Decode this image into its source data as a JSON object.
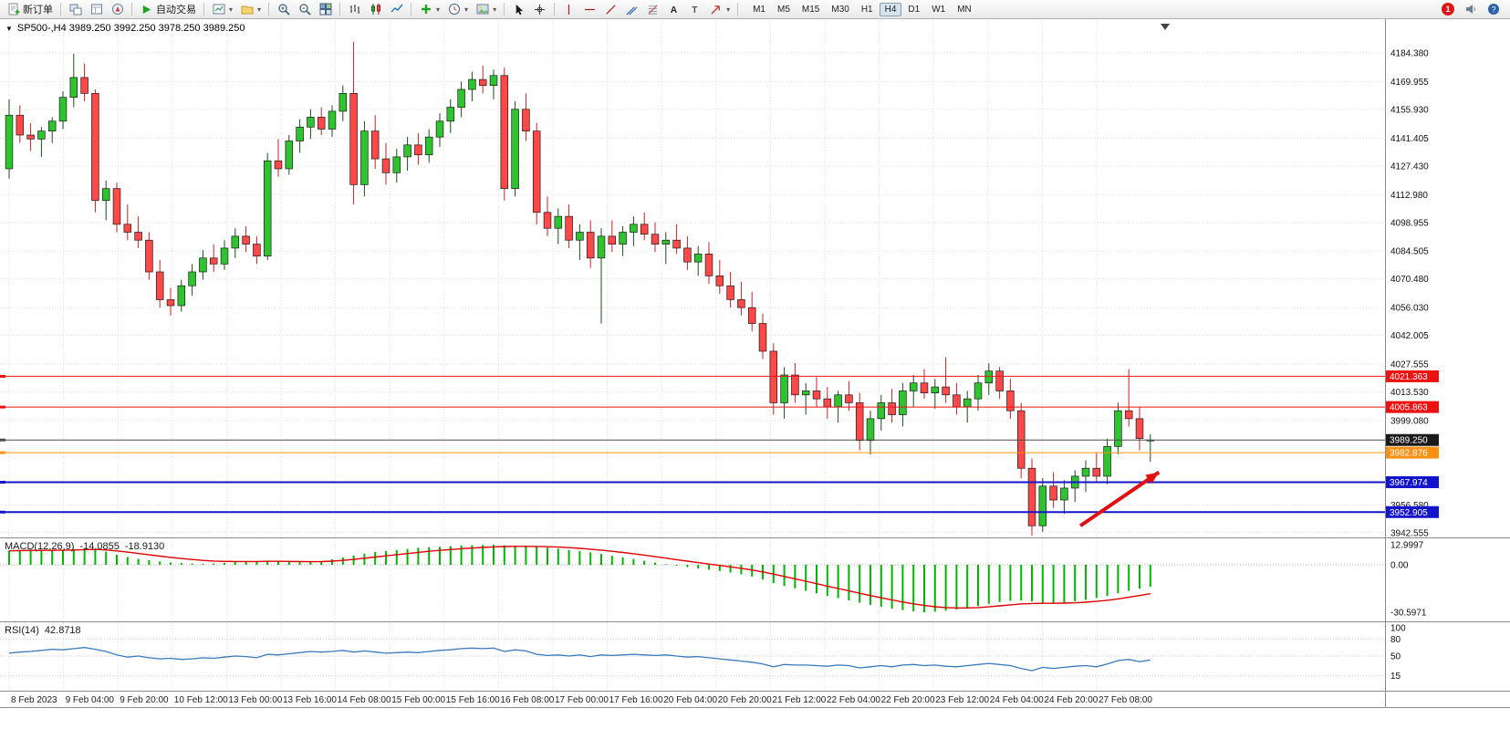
{
  "toolbar": {
    "new_order_label": "新订单",
    "auto_trading_label": "自动交易",
    "timeframes": [
      "M1",
      "M5",
      "M15",
      "M30",
      "H1",
      "H4",
      "D1",
      "W1",
      "MN"
    ],
    "active_timeframe": "H4",
    "notification_badge": "1"
  },
  "chart_data": {
    "type": "candlestick",
    "title": "SP500-,H4",
    "quote": "SP500-,H4  3989.250 3992.250 3978.250 3989.250",
    "colors": {
      "up": "#2FC42F",
      "down": "#FF4848",
      "up_wick": "#1c4d1c",
      "down_wick": "#c22525",
      "grid": "#dedede",
      "macd_hist": "#00B400",
      "macd_signal": "#E00000",
      "rsi_line": "#3A7ABF",
      "arrow": "#E01010"
    },
    "price_axis": {
      "labels": [
        "4184.380",
        "4169.955",
        "4155.930",
        "4141.405",
        "4127.430",
        "4112.980",
        "4098.955",
        "4084.505",
        "4070.480",
        "4056.030",
        "4042.005",
        "4027.555",
        "4013.530",
        "3999.080",
        "3956.580",
        "3942.555"
      ]
    },
    "time_labels": [
      "8 Feb 2023",
      "9 Feb 04:00",
      "9 Feb 20:00",
      "10 Feb 12:00",
      "13 Feb 00:00",
      "13 Feb 16:00",
      "14 Feb 08:00",
      "15 Feb 00:00",
      "15 Feb 16:00",
      "16 Feb 08:00",
      "17 Feb 00:00",
      "17 Feb 16:00",
      "20 Feb 04:00",
      "20 Feb 20:00",
      "21 Feb 12:00",
      "22 Feb 04:00",
      "22 Feb 20:00",
      "23 Feb 12:00",
      "24 Feb 04:00",
      "24 Feb 20:00",
      "27 Feb 08:00"
    ],
    "levels": [
      {
        "price": 4021.363,
        "label": "4021.363",
        "color": "#EE1111",
        "thickness": 1
      },
      {
        "price": 4005.863,
        "label": "4005.863",
        "color": "#EE1111",
        "thickness": 1
      },
      {
        "price": 3989.25,
        "label": "3989.250",
        "color": "#4d4d4d",
        "thickness": 1,
        "tag_bg": "#1a1a1a",
        "kind": "bid"
      },
      {
        "price": 3982.876,
        "label": "3982.876",
        "color": "#FF9014",
        "thickness": 1
      },
      {
        "price": 3967.974,
        "label": "3967.974",
        "color": "#1414CC",
        "thickness": 2
      },
      {
        "price": 3952.905,
        "label": "3952.905",
        "color": "#1414CC",
        "thickness": 2
      }
    ],
    "annotation_arrow": {
      "from_bar": 99.5,
      "from_price": 3946,
      "to_bar": 106.8,
      "to_price": 3973,
      "color": "#E01010"
    },
    "candles": [
      [
        4126,
        4161,
        4121,
        4153
      ],
      [
        4153,
        4158,
        4139,
        4143
      ],
      [
        4143,
        4149,
        4135,
        4141
      ],
      [
        4141,
        4147,
        4132,
        4145
      ],
      [
        4145,
        4152,
        4139,
        4150
      ],
      [
        4150,
        4165,
        4146,
        4162
      ],
      [
        4162,
        4184,
        4157,
        4172
      ],
      [
        4172,
        4179,
        4160,
        4164
      ],
      [
        4164,
        4166,
        4104,
        4110
      ],
      [
        4110,
        4120,
        4100,
        4116
      ],
      [
        4116,
        4119,
        4094,
        4098
      ],
      [
        4098,
        4108,
        4090,
        4094
      ],
      [
        4094,
        4102,
        4086,
        4090
      ],
      [
        4090,
        4094,
        4070,
        4074
      ],
      [
        4074,
        4080,
        4056,
        4060
      ],
      [
        4060,
        4066,
        4052,
        4057
      ],
      [
        4057,
        4070,
        4054,
        4067
      ],
      [
        4067,
        4078,
        4062,
        4074
      ],
      [
        4074,
        4085,
        4070,
        4081
      ],
      [
        4081,
        4088,
        4074,
        4078
      ],
      [
        4078,
        4090,
        4075,
        4086
      ],
      [
        4086,
        4096,
        4081,
        4092
      ],
      [
        4092,
        4097,
        4084,
        4088
      ],
      [
        4088,
        4092,
        4078,
        4082
      ],
      [
        4082,
        4134,
        4080,
        4130
      ],
      [
        4130,
        4141,
        4122,
        4126
      ],
      [
        4126,
        4143,
        4123,
        4140
      ],
      [
        4140,
        4151,
        4134,
        4147
      ],
      [
        4147,
        4156,
        4141,
        4152
      ],
      [
        4152,
        4157,
        4143,
        4146
      ],
      [
        4146,
        4158,
        4142,
        4155
      ],
      [
        4155,
        4168,
        4150,
        4164
      ],
      [
        4164,
        4190,
        4108,
        4118
      ],
      [
        4118,
        4150,
        4112,
        4145
      ],
      [
        4145,
        4153,
        4126,
        4131
      ],
      [
        4131,
        4139,
        4118,
        4124
      ],
      [
        4124,
        4136,
        4119,
        4132
      ],
      [
        4132,
        4142,
        4125,
        4138
      ],
      [
        4138,
        4144,
        4128,
        4133
      ],
      [
        4133,
        4146,
        4129,
        4142
      ],
      [
        4142,
        4154,
        4137,
        4150
      ],
      [
        4150,
        4161,
        4144,
        4157
      ],
      [
        4157,
        4170,
        4152,
        4166
      ],
      [
        4166,
        4175,
        4160,
        4171
      ],
      [
        4171,
        4178,
        4164,
        4168
      ],
      [
        4168,
        4176,
        4161,
        4173
      ],
      [
        4173,
        4177,
        4110,
        4116
      ],
      [
        4116,
        4160,
        4112,
        4156
      ],
      [
        4156,
        4164,
        4140,
        4145
      ],
      [
        4145,
        4149,
        4098,
        4104
      ],
      [
        4104,
        4112,
        4092,
        4096
      ],
      [
        4096,
        4106,
        4088,
        4102
      ],
      [
        4102,
        4108,
        4086,
        4090
      ],
      [
        4090,
        4098,
        4080,
        4094
      ],
      [
        4094,
        4100,
        4076,
        4081
      ],
      [
        4081,
        4096,
        4048,
        4092
      ],
      [
        4092,
        4100,
        4084,
        4088
      ],
      [
        4088,
        4097,
        4082,
        4094
      ],
      [
        4094,
        4102,
        4087,
        4098
      ],
      [
        4098,
        4104,
        4090,
        4093
      ],
      [
        4093,
        4099,
        4084,
        4088
      ],
      [
        4088,
        4094,
        4078,
        4090
      ],
      [
        4090,
        4098,
        4083,
        4086
      ],
      [
        4086,
        4092,
        4075,
        4079
      ],
      [
        4079,
        4087,
        4072,
        4083
      ],
      [
        4083,
        4089,
        4068,
        4072
      ],
      [
        4072,
        4080,
        4063,
        4067
      ],
      [
        4067,
        4074,
        4056,
        4060
      ],
      [
        4060,
        4069,
        4052,
        4056
      ],
      [
        4056,
        4064,
        4044,
        4048
      ],
      [
        4048,
        4053,
        4030,
        4034
      ],
      [
        4034,
        4038,
        4002,
        4008
      ],
      [
        4008,
        4026,
        4000,
        4022
      ],
      [
        4022,
        4028,
        4008,
        4012
      ],
      [
        4012,
        4018,
        4002,
        4014
      ],
      [
        4014,
        4021,
        4006,
        4010
      ],
      [
        4010,
        4016,
        4000,
        4006
      ],
      [
        4006,
        4014,
        3998,
        4012
      ],
      [
        4012,
        4019,
        4004,
        4008
      ],
      [
        4008,
        4013,
        3984,
        3989
      ],
      [
        3989,
        4004,
        3982,
        4000
      ],
      [
        4000,
        4012,
        3994,
        4008
      ],
      [
        4008,
        4015,
        3998,
        4002
      ],
      [
        4002,
        4018,
        3996,
        4014
      ],
      [
        4014,
        4022,
        4006,
        4018
      ],
      [
        4018,
        4025,
        4010,
        4013
      ],
      [
        4013,
        4020,
        4005,
        4016
      ],
      [
        4016,
        4031,
        4008,
        4012
      ],
      [
        4012,
        4018,
        4002,
        4006
      ],
      [
        4006,
        4014,
        3998,
        4010
      ],
      [
        4010,
        4022,
        4004,
        4018
      ],
      [
        4018,
        4028,
        4012,
        4024
      ],
      [
        4024,
        4026,
        4010,
        4014
      ],
      [
        4014,
        4020,
        4000,
        4004
      ],
      [
        4004,
        4008,
        3970,
        3975
      ],
      [
        3975,
        3980,
        3941,
        3946
      ],
      [
        3946,
        3970,
        3943,
        3966
      ],
      [
        3966,
        3973,
        3955,
        3959
      ],
      [
        3959,
        3969,
        3952,
        3965
      ],
      [
        3965,
        3974,
        3958,
        3971
      ],
      [
        3971,
        3979,
        3963,
        3975
      ],
      [
        3975,
        3983,
        3968,
        3971
      ],
      [
        3971,
        3990,
        3967,
        3986
      ],
      [
        3986,
        4008,
        3982,
        4004
      ],
      [
        4004,
        4025,
        3996,
        4000
      ],
      [
        4000,
        4006,
        3984,
        3990
      ],
      [
        3989.25,
        3992.25,
        3978.25,
        3989.25
      ]
    ],
    "macd": {
      "name": "MACD(12,26,9)",
      "main_value": "-14.0855",
      "signal_value": "-18.9130",
      "axis_labels": [
        "12.9997",
        "0.00",
        "-30.5971"
      ],
      "axis_values": [
        12.9997,
        0,
        -30.5971
      ],
      "hist": [
        9.0,
        9.5,
        9.8,
        9.5,
        9.2,
        9.6,
        10.2,
        10.8,
        10.2,
        8.5,
        6.5,
        5.0,
        3.8,
        3.0,
        2.2,
        1.5,
        1.2,
        0.8,
        0.6,
        0.8,
        1.2,
        1.8,
        2.0,
        2.2,
        2.6,
        2.4,
        2.0,
        1.6,
        1.8,
        2.2,
        3.5,
        4.8,
        6.0,
        7.2,
        8.2,
        8.8,
        9.5,
        10.2,
        11.0,
        11.4,
        11.6,
        12.0,
        12.4,
        12.6,
        12.8,
        12.9,
        12.6,
        12.3,
        12.0,
        11.5,
        11.0,
        10.4,
        9.6,
        8.8,
        8.0,
        7.0,
        5.8,
        4.8,
        3.8,
        2.6,
        1.4,
        0.4,
        -0.6,
        -1.5,
        -2.4,
        -3.2,
        -4.0,
        -5.0,
        -6.2,
        -7.6,
        -9.4,
        -11.8,
        -13.6,
        -15.2,
        -16.8,
        -18.4,
        -20.0,
        -21.5,
        -23.0,
        -24.5,
        -25.8,
        -27.0,
        -28.2,
        -29.2,
        -30.0,
        -30.6,
        -30.2,
        -29.6,
        -28.8,
        -27.8,
        -26.6,
        -25.2,
        -24.0,
        -23.2,
        -23.0,
        -23.6,
        -24.4,
        -24.8,
        -24.4,
        -23.6,
        -22.6,
        -21.4,
        -20.0,
        -18.4,
        -16.8,
        -15.3,
        -14.0855
      ]
    },
    "rsi": {
      "name": "RSI(14)",
      "value": "42.8718",
      "levels": [
        "100",
        "80",
        "50",
        "15"
      ],
      "level_values": [
        100,
        80,
        50,
        15
      ],
      "values": [
        55,
        57,
        58,
        60,
        62,
        61,
        63,
        65,
        62,
        58,
        52,
        48,
        50,
        47,
        45,
        46,
        44,
        45,
        47,
        46,
        48,
        50,
        49,
        47,
        53,
        52,
        54,
        56,
        58,
        57,
        58,
        60,
        57,
        59,
        57,
        55,
        56,
        57,
        56,
        58,
        60,
        61,
        63,
        64,
        63,
        64,
        58,
        61,
        59,
        53,
        51,
        52,
        50,
        52,
        49,
        52,
        51,
        52,
        53,
        52,
        51,
        52,
        50,
        48,
        49,
        47,
        45,
        43,
        41,
        39,
        36,
        31,
        35,
        34,
        34,
        33,
        32,
        34,
        33,
        29,
        31,
        33,
        31,
        34,
        35,
        33,
        34,
        32,
        31,
        33,
        35,
        37,
        35,
        33,
        28,
        24,
        30,
        28,
        30,
        32,
        33,
        31,
        36,
        42,
        44,
        40,
        42.87
      ]
    }
  }
}
